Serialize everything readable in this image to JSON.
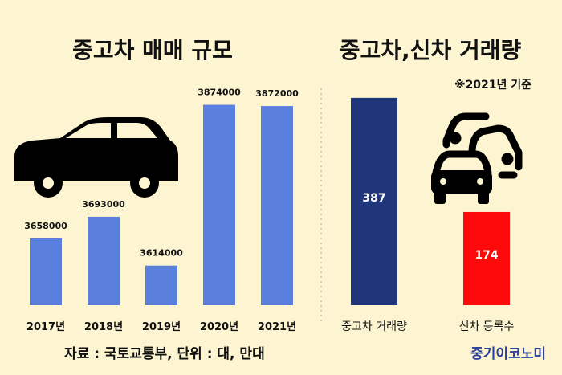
{
  "chart_data": [
    {
      "type": "bar",
      "title": "중고차 매매 규모",
      "categories": [
        "2017년",
        "2018년",
        "2019년",
        "2020년",
        "2021년"
      ],
      "values": [
        3658000,
        3693000,
        3614000,
        3874000,
        3872000
      ],
      "data_labels": [
        "3658000",
        "3693000",
        "3614000",
        "3874000",
        "3872000"
      ],
      "color": "#5b7fdc",
      "grid": false
    },
    {
      "type": "bar",
      "title": "중고차,신차 거래량",
      "subtitle": "※2021년 기준",
      "categories": [
        "중고차 거래량",
        "신차 등록수"
      ],
      "values": [
        387,
        174
      ],
      "data_labels": [
        "387",
        "174"
      ],
      "colors": [
        "#1f367a",
        "#ff0a0a"
      ],
      "grid": false
    }
  ],
  "footer": {
    "source": "자료 : 국토교통부, 단위 : 대, 만대",
    "brand": "중기이코노미"
  },
  "icons": [
    "car-icon",
    "traffic-cars-icon"
  ]
}
